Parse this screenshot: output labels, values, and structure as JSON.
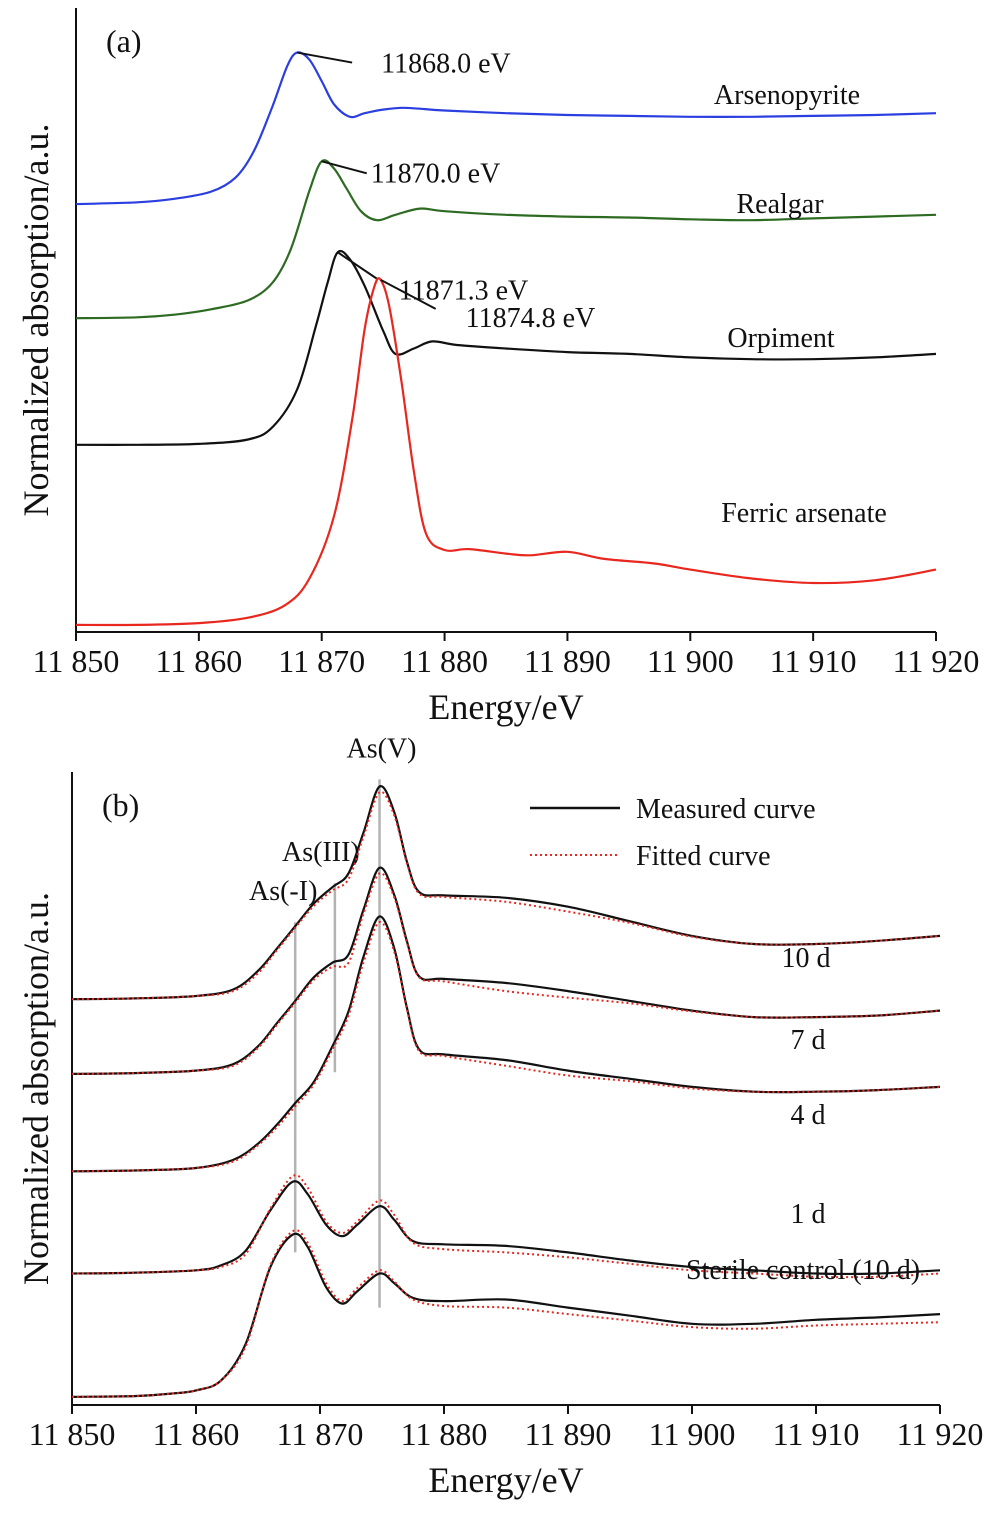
{
  "chart_data": [
    {
      "panel": "(a)",
      "type": "line",
      "xlabel": "Energy/eV",
      "ylabel": "Normalized absorption/a.u.",
      "xlim": [
        11850,
        11920
      ],
      "x_ticks": [
        11850,
        11860,
        11870,
        11880,
        11890,
        11900,
        11910,
        11920
      ],
      "x_tick_labels": [
        "11 850",
        "11 860",
        "11 870",
        "11 880",
        "11 890",
        "11 900",
        "11 910",
        "11 920"
      ],
      "y_ticks_shown": false,
      "ylim": [
        0,
        7
      ],
      "series": [
        {
          "name": "Arsenopyrite",
          "color": "#2b3fe0",
          "peak_label": "11868.0 eV",
          "peak_x": 11868.0,
          "x": [
            11850,
            11855,
            11858,
            11861,
            11863,
            11864.5,
            11866,
            11867.2,
            11868.0,
            11869,
            11870,
            11871,
            11872.3,
            11873.5,
            11875,
            11876.5,
            11878,
            11880,
            11885,
            11890,
            11895,
            11900,
            11905,
            11910,
            11915,
            11920
          ],
          "y": [
            4.8,
            4.82,
            4.86,
            4.94,
            5.1,
            5.4,
            5.9,
            6.35,
            6.5,
            6.42,
            6.18,
            5.92,
            5.78,
            5.82,
            5.86,
            5.88,
            5.87,
            5.85,
            5.82,
            5.8,
            5.79,
            5.78,
            5.78,
            5.79,
            5.8,
            5.82
          ]
        },
        {
          "name": "Realgar",
          "color": "#2d6b22",
          "peak_label": "11870.0 eV",
          "peak_x": 11870.0,
          "x": [
            11850,
            11855,
            11858,
            11861,
            11864,
            11866,
            11867.5,
            11869,
            11870.0,
            11871,
            11872,
            11873.2,
            11874.5,
            11876,
            11878,
            11880,
            11885,
            11890,
            11895,
            11900,
            11905,
            11910,
            11915,
            11920
          ],
          "y": [
            3.52,
            3.53,
            3.56,
            3.62,
            3.72,
            3.92,
            4.3,
            4.95,
            5.28,
            5.2,
            4.98,
            4.72,
            4.62,
            4.68,
            4.75,
            4.72,
            4.68,
            4.66,
            4.65,
            4.63,
            4.62,
            4.64,
            4.66,
            4.68
          ]
        },
        {
          "name": "Orpiment",
          "color": "#111111",
          "peak_label": "11871.3 eV",
          "peak_x": 11871.3,
          "x": [
            11850,
            11855,
            11860,
            11864,
            11866,
            11868,
            11869.5,
            11870.5,
            11871.3,
            11872.3,
            11873.5,
            11875,
            11876,
            11877.5,
            11879,
            11881,
            11885,
            11890,
            11895,
            11900,
            11905,
            11910,
            11915,
            11920
          ],
          "y": [
            2.1,
            2.1,
            2.11,
            2.16,
            2.3,
            2.72,
            3.42,
            3.93,
            4.26,
            4.18,
            3.88,
            3.38,
            3.12,
            3.18,
            3.26,
            3.22,
            3.18,
            3.14,
            3.12,
            3.08,
            3.06,
            3.06,
            3.08,
            3.12
          ]
        },
        {
          "name": "Ferric arsenate",
          "color": "#e8271e",
          "peak_label": "11874.8 eV",
          "peak_x": 11874.8,
          "x": [
            11850,
            11855,
            11860,
            11864,
            11867,
            11869,
            11871,
            11872.5,
            11873.5,
            11874.3,
            11874.8,
            11875.5,
            11876.5,
            11877.5,
            11878.5,
            11880,
            11882,
            11885,
            11887,
            11890,
            11893,
            11897,
            11900,
            11905,
            11910,
            11915,
            11920
          ],
          "y": [
            0.08,
            0.08,
            0.1,
            0.16,
            0.3,
            0.6,
            1.3,
            2.4,
            3.4,
            3.88,
            3.95,
            3.65,
            2.8,
            1.8,
            1.1,
            0.92,
            0.93,
            0.88,
            0.86,
            0.9,
            0.82,
            0.77,
            0.7,
            0.6,
            0.55,
            0.58,
            0.7
          ]
        }
      ]
    },
    {
      "panel": "(b)",
      "type": "line",
      "xlabel": "Energy/eV",
      "ylabel": "Normalized absorption/a.u.",
      "xlim": [
        11850,
        11920
      ],
      "x_ticks": [
        11850,
        11860,
        11870,
        11880,
        11890,
        11900,
        11910,
        11920
      ],
      "x_tick_labels": [
        "11 850",
        "11 860",
        "11 870",
        "11 880",
        "11 890",
        "11 900",
        "11 910",
        "11 920"
      ],
      "y_ticks_shown": false,
      "ylim": [
        0,
        7.8
      ],
      "legend": {
        "placement": "top-right",
        "entries": [
          {
            "label": "Measured curve",
            "style": "solid",
            "color": "#111111"
          },
          {
            "label": "Fitted curve",
            "style": "dotted",
            "color": "#e8271e"
          }
        ]
      },
      "reference_lines": [
        {
          "label": "As(-I)",
          "x": 11868.0
        },
        {
          "label": "As(III)",
          "x": 11871.2
        },
        {
          "label": "As(V)",
          "x": 11874.8
        }
      ],
      "series": [
        {
          "name": "10 d",
          "x": [
            11850,
            11855,
            11860,
            11863,
            11865,
            11866.5,
            11868,
            11869.5,
            11871,
            11872.3,
            11873.5,
            11874.8,
            11876,
            11877,
            11878,
            11880,
            11885,
            11890,
            11895,
            11900,
            11905,
            11910,
            11915,
            11920
          ],
          "measured": [
            5.0,
            5.01,
            5.04,
            5.12,
            5.35,
            5.62,
            5.9,
            6.18,
            6.38,
            6.55,
            7.05,
            7.62,
            7.3,
            6.7,
            6.32,
            6.28,
            6.25,
            6.14,
            5.96,
            5.78,
            5.68,
            5.68,
            5.72,
            5.78
          ],
          "fitted": [
            5.0,
            5.01,
            5.04,
            5.1,
            5.32,
            5.6,
            5.88,
            6.15,
            6.34,
            6.48,
            7.0,
            7.55,
            7.26,
            6.68,
            6.3,
            6.26,
            6.2,
            6.08,
            5.94,
            5.77,
            5.68,
            5.68,
            5.72,
            5.78
          ]
        },
        {
          "name": "7 d",
          "x": [
            11850,
            11855,
            11860,
            11863,
            11865,
            11866.5,
            11868,
            11869.5,
            11871,
            11872.3,
            11873.5,
            11874.8,
            11876,
            11877,
            11878,
            11880,
            11885,
            11890,
            11895,
            11900,
            11905,
            11910,
            11915,
            11920
          ],
          "measured": [
            4.08,
            4.09,
            4.12,
            4.2,
            4.42,
            4.7,
            4.98,
            5.27,
            5.45,
            5.55,
            6.1,
            6.62,
            6.28,
            5.72,
            5.28,
            5.25,
            5.2,
            5.1,
            4.98,
            4.86,
            4.78,
            4.78,
            4.8,
            4.86
          ],
          "fitted": [
            4.08,
            4.09,
            4.12,
            4.18,
            4.4,
            4.68,
            4.96,
            5.24,
            5.4,
            5.45,
            6.05,
            6.55,
            6.25,
            5.7,
            5.27,
            5.22,
            5.1,
            5.02,
            4.95,
            4.85,
            4.78,
            4.78,
            4.8,
            4.86
          ]
        },
        {
          "name": "4 d",
          "x": [
            11850,
            11855,
            11860,
            11863,
            11865,
            11866.5,
            11868,
            11869.5,
            11871,
            11872.3,
            11873.5,
            11874.8,
            11876,
            11877,
            11878,
            11880,
            11885,
            11890,
            11895,
            11900,
            11905,
            11910,
            11915,
            11920
          ],
          "measured": [
            2.88,
            2.89,
            2.92,
            3.02,
            3.22,
            3.45,
            3.72,
            3.98,
            4.42,
            4.85,
            5.52,
            6.02,
            5.62,
            4.9,
            4.38,
            4.32,
            4.25,
            4.12,
            4.02,
            3.92,
            3.86,
            3.86,
            3.88,
            3.92
          ],
          "fitted": [
            2.88,
            2.89,
            2.92,
            3.0,
            3.2,
            3.42,
            3.68,
            3.95,
            4.38,
            4.8,
            5.45,
            5.95,
            5.58,
            4.88,
            4.36,
            4.3,
            4.18,
            4.06,
            3.99,
            3.9,
            3.86,
            3.86,
            3.88,
            3.92
          ]
        },
        {
          "name": "1 d",
          "x": [
            11850,
            11855,
            11860,
            11862,
            11864,
            11866,
            11867.8,
            11869,
            11870.5,
            11871.8,
            11873,
            11874.8,
            11876,
            11877.5,
            11880,
            11885,
            11890,
            11895,
            11900,
            11905,
            11910,
            11915,
            11920
          ],
          "measured": [
            1.62,
            1.63,
            1.66,
            1.72,
            1.9,
            2.4,
            2.75,
            2.6,
            2.22,
            2.08,
            2.22,
            2.45,
            2.28,
            2.02,
            1.98,
            1.96,
            1.88,
            1.78,
            1.7,
            1.66,
            1.62,
            1.62,
            1.66
          ],
          "fitted": [
            1.62,
            1.63,
            1.66,
            1.7,
            1.86,
            2.42,
            2.82,
            2.68,
            2.26,
            2.12,
            2.26,
            2.52,
            2.34,
            2.0,
            1.92,
            1.88,
            1.82,
            1.74,
            1.66,
            1.62,
            1.58,
            1.58,
            1.62
          ]
        },
        {
          "name": "Sterile control (10 d)",
          "x": [
            11850,
            11855,
            11858,
            11860,
            11862,
            11864,
            11866,
            11867.8,
            11869,
            11870.5,
            11871.8,
            11873,
            11874.8,
            11876,
            11877.5,
            11880,
            11885,
            11890,
            11895,
            11900,
            11905,
            11910,
            11915,
            11920
          ],
          "measured": [
            0.1,
            0.11,
            0.14,
            0.18,
            0.3,
            0.75,
            1.7,
            2.1,
            1.95,
            1.45,
            1.25,
            1.4,
            1.62,
            1.5,
            1.32,
            1.28,
            1.3,
            1.2,
            1.1,
            1.0,
            1.0,
            1.05,
            1.08,
            1.12
          ],
          "fitted": [
            0.1,
            0.11,
            0.14,
            0.18,
            0.3,
            0.72,
            1.72,
            2.14,
            2.0,
            1.5,
            1.28,
            1.44,
            1.66,
            1.52,
            1.3,
            1.22,
            1.2,
            1.12,
            1.04,
            0.96,
            0.94,
            0.98,
            1.0,
            1.02
          ]
        }
      ]
    }
  ]
}
